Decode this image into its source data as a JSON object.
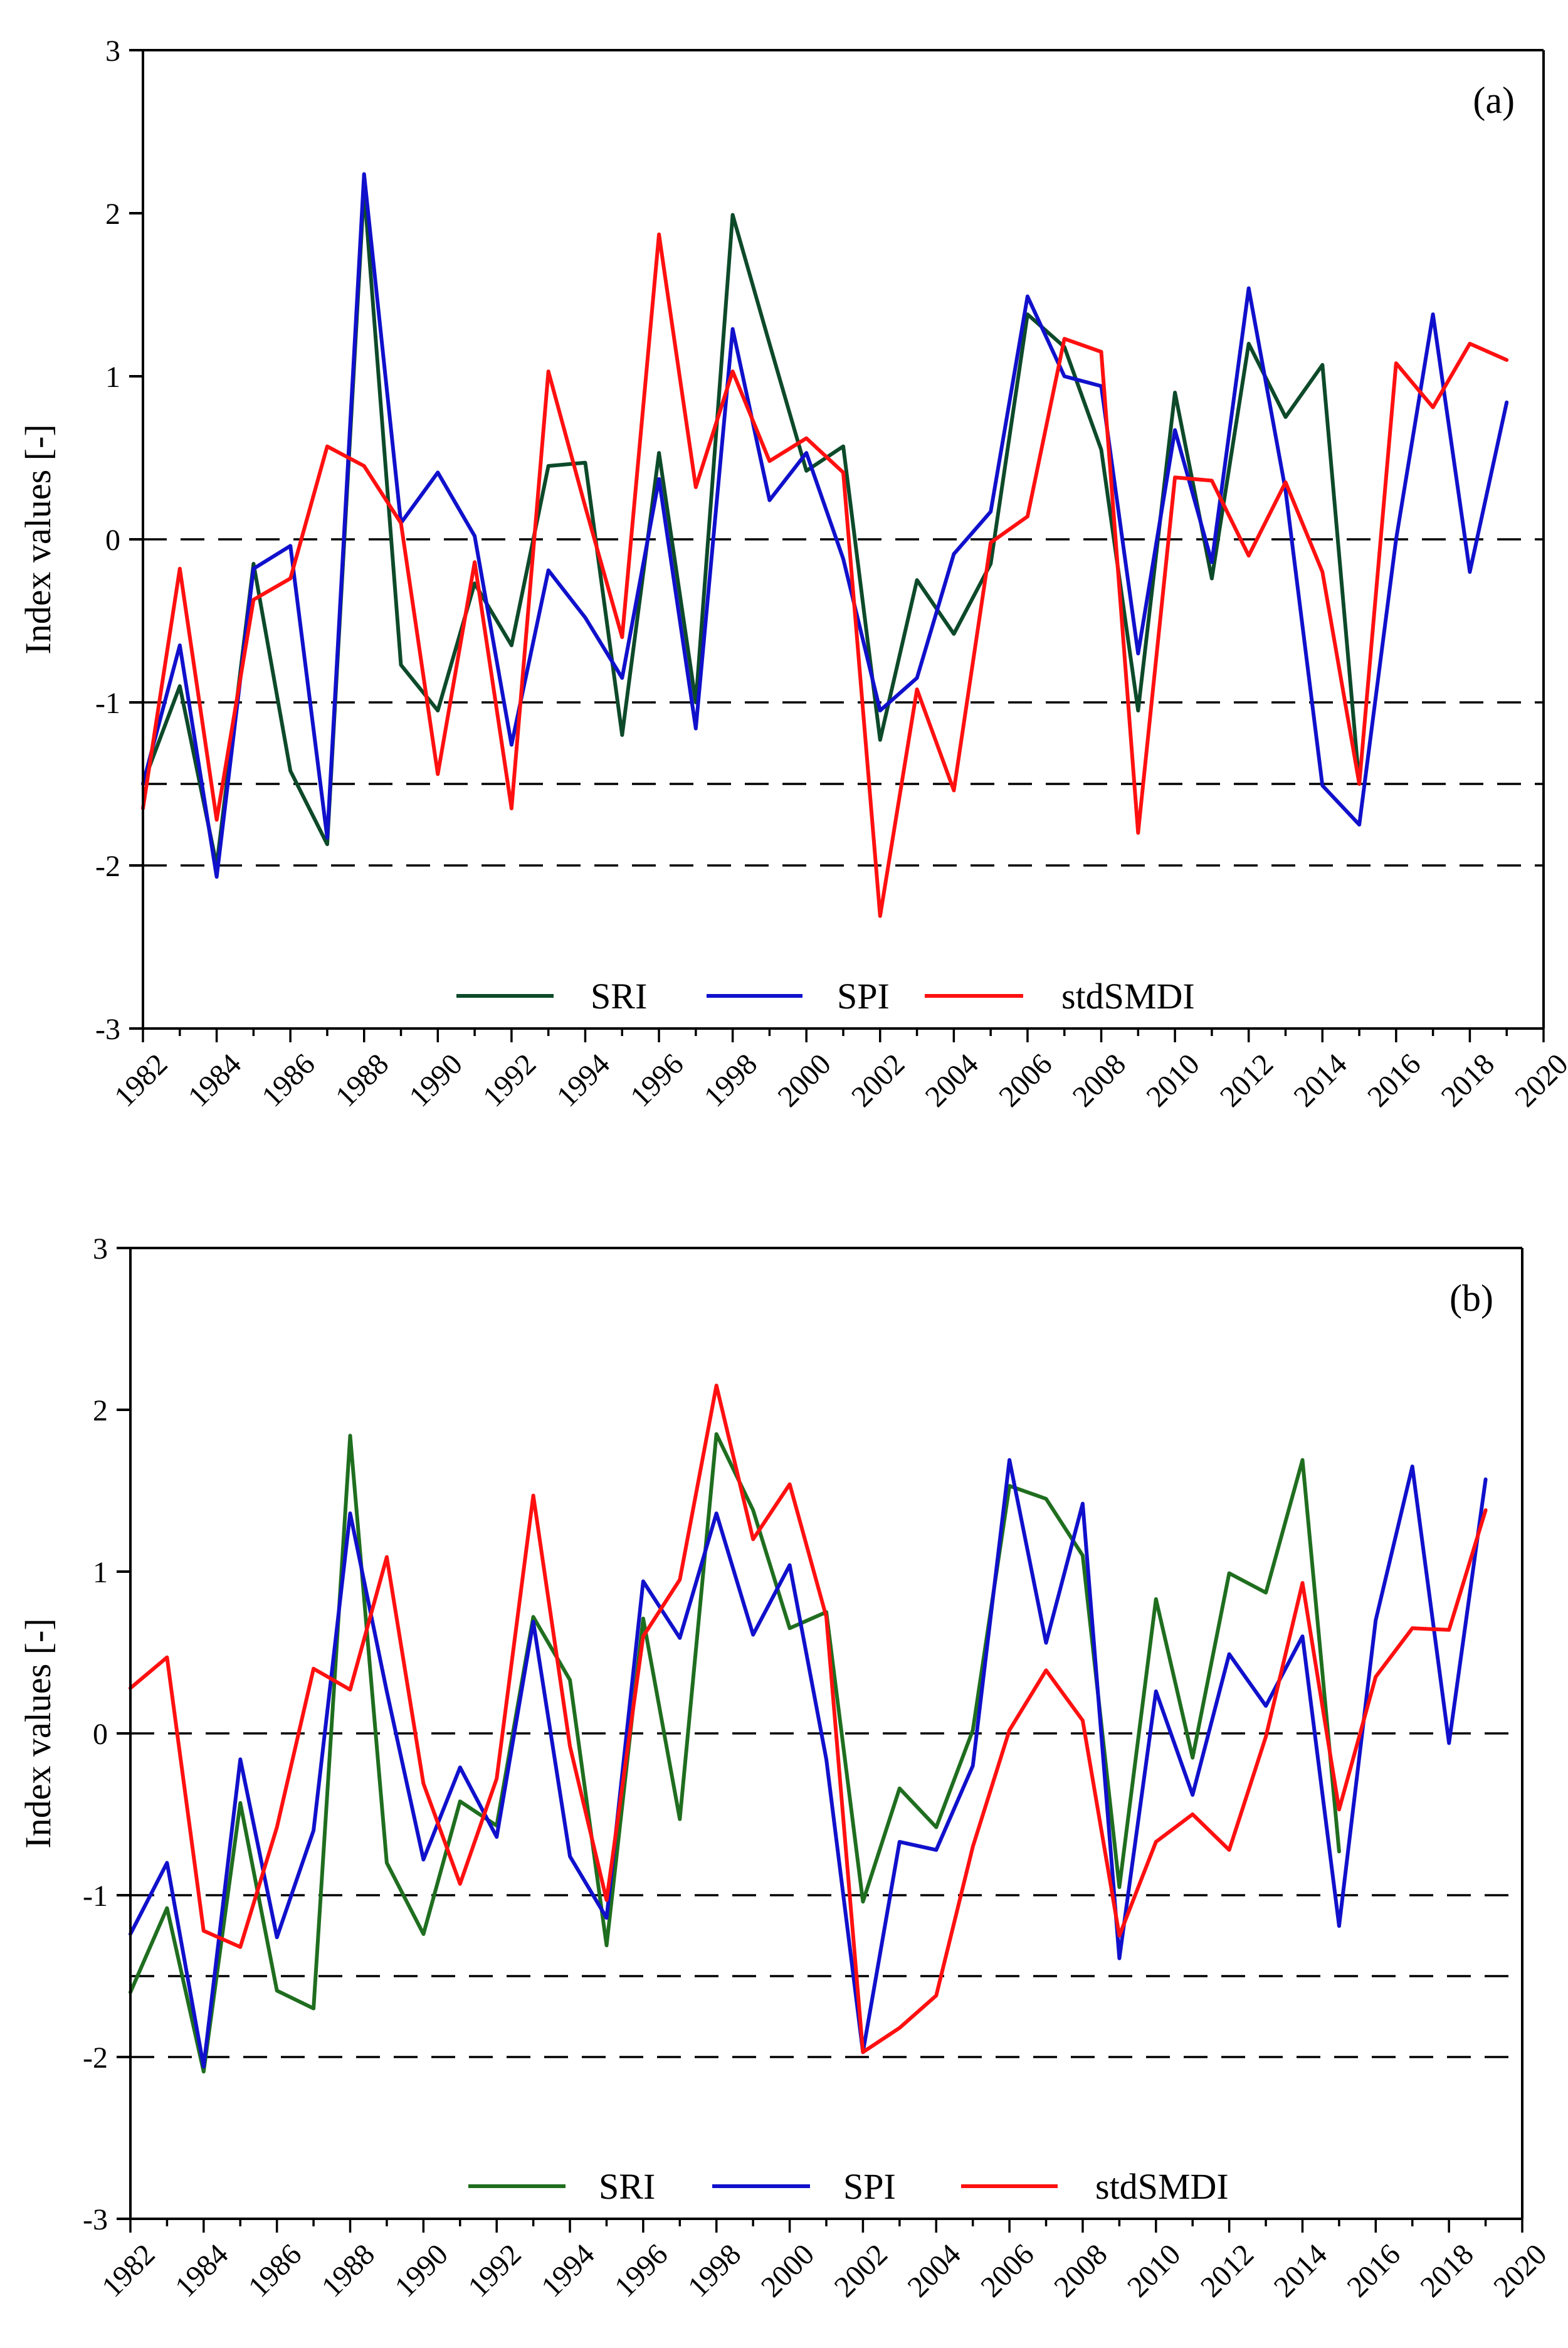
{
  "figure": {
    "series_colors": {
      "SRI_a": "#0d4a2a",
      "SRI_b": "#1f6e1f",
      "SPI": "#1010cc",
      "stdSMDI": "#ff1010"
    }
  },
  "chart_data": [
    {
      "type": "line",
      "panel_label": "(a)",
      "ylabel": "Index values [-]",
      "xlabel": "",
      "xlim": [
        1982,
        2020
      ],
      "ylim": [
        -3,
        3
      ],
      "x_ticks": [
        1982,
        1984,
        1986,
        1988,
        1990,
        1992,
        1994,
        1996,
        1998,
        2000,
        2002,
        2004,
        2006,
        2008,
        2010,
        2012,
        2014,
        2016,
        2018,
        2020
      ],
      "y_ticks": [
        -3,
        -2,
        -1,
        0,
        1,
        2,
        3
      ],
      "reference_lines": [
        0,
        -1,
        -1.5,
        -2
      ],
      "legend": [
        "SRI",
        "SPI",
        "stdSMDI"
      ],
      "legend_position": "bottom-center",
      "x": [
        1982,
        1983,
        1984,
        1985,
        1986,
        1987,
        1988,
        1989,
        1990,
        1991,
        1992,
        1993,
        1994,
        1995,
        1996,
        1997,
        1998,
        1999,
        2000,
        2001,
        2002,
        2003,
        2004,
        2005,
        2006,
        2007,
        2008,
        2009,
        2010,
        2011,
        2012,
        2013,
        2014,
        2015,
        2016,
        2017,
        2018,
        2019
      ],
      "series": [
        {
          "name": "SRI",
          "color": "#0d4a2a",
          "values": [
            -1.5,
            -0.9,
            -2.0,
            -0.15,
            -1.42,
            -1.87,
            2.15,
            -0.77,
            -1.05,
            -0.27,
            -0.65,
            0.45,
            0.47,
            -1.2,
            0.53,
            -1.0,
            1.99,
            1.2,
            0.42,
            0.57,
            -1.23,
            -0.25,
            -0.58,
            -0.15,
            1.38,
            1.18,
            0.55,
            -1.05,
            0.9,
            -0.24,
            1.2,
            0.75,
            1.07,
            -1.5,
            null,
            null,
            null,
            null
          ]
        },
        {
          "name": "SPI",
          "color": "#1010cc",
          "values": [
            -1.5,
            -0.65,
            -2.07,
            -0.18,
            -0.04,
            -1.83,
            2.24,
            0.1,
            0.41,
            0.02,
            -1.26,
            -0.19,
            -0.48,
            -0.85,
            0.37,
            -1.16,
            1.29,
            0.24,
            0.53,
            -0.12,
            -1.05,
            -0.85,
            -0.09,
            0.17,
            1.49,
            1.0,
            0.94,
            -0.7,
            0.67,
            -0.14,
            1.54,
            0.3,
            -1.51,
            -1.75,
            0.0,
            1.38,
            -0.2,
            0.84
          ]
        },
        {
          "name": "stdSMDI",
          "color": "#ff1010",
          "values": [
            -1.65,
            -0.18,
            -1.72,
            -0.37,
            -0.24,
            0.57,
            0.45,
            0.1,
            -1.44,
            -0.14,
            -1.65,
            1.03,
            0.2,
            -0.6,
            1.87,
            0.32,
            1.03,
            0.48,
            0.62,
            0.41,
            -2.31,
            -0.92,
            -1.54,
            -0.02,
            0.14,
            1.23,
            1.15,
            -1.8,
            0.38,
            0.36,
            -0.1,
            0.35,
            -0.2,
            -1.5,
            1.08,
            0.81,
            1.2,
            1.1
          ]
        }
      ]
    },
    {
      "type": "line",
      "panel_label": "(b)",
      "ylabel": "Index values [-]",
      "xlabel": "",
      "xlim": [
        1982,
        2020
      ],
      "ylim": [
        -3,
        3
      ],
      "x_ticks": [
        1982,
        1984,
        1986,
        1988,
        1990,
        1992,
        1994,
        1996,
        1998,
        2000,
        2002,
        2004,
        2006,
        2008,
        2010,
        2012,
        2014,
        2016,
        2018,
        2020
      ],
      "y_ticks": [
        -3,
        -2,
        -1,
        0,
        1,
        2,
        3
      ],
      "reference_lines": [
        0,
        -1,
        -1.5,
        -2
      ],
      "legend": [
        "SRI",
        "SPI",
        "stdSMDI"
      ],
      "legend_position": "bottom-center",
      "x": [
        1982,
        1983,
        1984,
        1985,
        1986,
        1987,
        1988,
        1989,
        1990,
        1991,
        1992,
        1993,
        1994,
        1995,
        1996,
        1997,
        1998,
        1999,
        2000,
        2001,
        2002,
        2003,
        2004,
        2005,
        2006,
        2007,
        2008,
        2009,
        2010,
        2011,
        2012,
        2013,
        2014,
        2015,
        2016,
        2017,
        2018,
        2019
      ],
      "series": [
        {
          "name": "SRI",
          "color": "#1f6e1f",
          "values": [
            -1.6,
            -1.08,
            -2.09,
            -0.43,
            -1.59,
            -1.7,
            1.84,
            -0.8,
            -1.24,
            -0.42,
            -0.57,
            0.72,
            0.33,
            -1.31,
            0.71,
            -0.53,
            1.85,
            1.38,
            0.65,
            0.75,
            -1.04,
            -0.34,
            -0.58,
            0.02,
            1.53,
            1.45,
            1.1,
            -0.95,
            0.83,
            -0.15,
            0.99,
            0.87,
            1.69,
            -0.73,
            null,
            null,
            null,
            null
          ]
        },
        {
          "name": "SPI",
          "color": "#1010cc",
          "values": [
            -1.24,
            -0.8,
            -2.06,
            -0.16,
            -1.26,
            -0.6,
            1.36,
            0.26,
            -0.78,
            -0.21,
            -0.64,
            0.69,
            -0.76,
            -1.14,
            0.94,
            0.59,
            1.36,
            0.61,
            1.04,
            -0.16,
            -1.97,
            -0.67,
            -0.72,
            -0.2,
            1.69,
            0.56,
            1.42,
            -1.39,
            0.26,
            -0.38,
            0.49,
            0.17,
            0.6,
            -1.19,
            0.7,
            1.65,
            -0.06,
            1.57
          ]
        },
        {
          "name": "stdSMDI",
          "color": "#ff1010",
          "values": [
            0.28,
            0.47,
            -1.22,
            -1.32,
            -0.58,
            0.4,
            0.27,
            1.09,
            -0.31,
            -0.93,
            -0.28,
            1.47,
            -0.08,
            -1.03,
            0.6,
            0.95,
            2.15,
            1.2,
            1.54,
            0.72,
            -1.97,
            -1.82,
            -1.62,
            -0.7,
            0.02,
            0.39,
            0.08,
            -1.25,
            -0.67,
            -0.5,
            -0.72,
            -0.02,
            0.93,
            -0.47,
            0.35,
            0.65,
            0.64,
            1.38
          ]
        }
      ]
    }
  ]
}
